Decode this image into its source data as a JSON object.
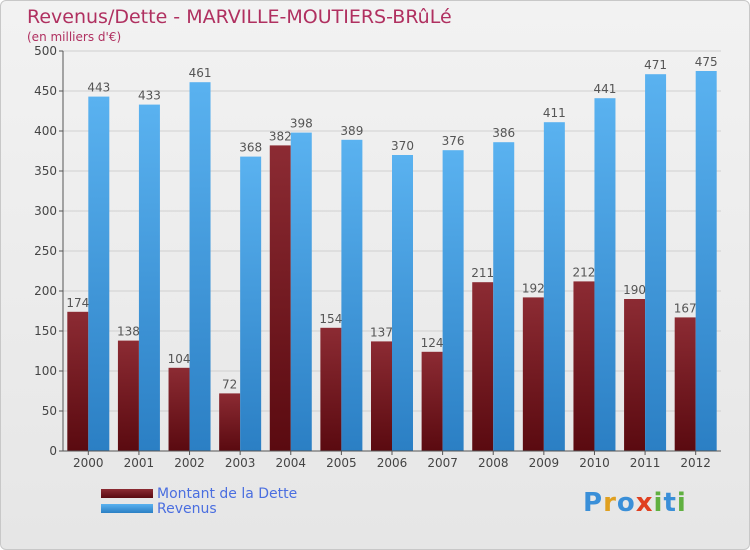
{
  "title": "Revenus/Dette - MARVILLE-MOUTIERS-BRûLé",
  "subtitle": "(en milliers d'€)",
  "logo": "Proxiti",
  "colors": {
    "debt": "#7a1c22",
    "revenue": "#4aa3e6",
    "title": "#b03060",
    "legend_text": "#4a6ee0"
  },
  "chart_data": {
    "type": "bar",
    "categories": [
      "2000",
      "2001",
      "2002",
      "2003",
      "2004",
      "2005",
      "2006",
      "2007",
      "2008",
      "2009",
      "2010",
      "2011",
      "2012"
    ],
    "series": [
      {
        "name": "Montant de la Dette",
        "values": [
          174,
          138,
          104,
          72,
          382,
          154,
          137,
          124,
          211,
          192,
          212,
          190,
          167
        ]
      },
      {
        "name": "Revenus",
        "values": [
          443,
          433,
          461,
          368,
          398,
          389,
          370,
          376,
          386,
          411,
          441,
          471,
          475
        ]
      }
    ],
    "ylim": [
      0,
      500
    ],
    "yticks": [
      0,
      50,
      100,
      150,
      200,
      250,
      300,
      350,
      400,
      450,
      500
    ],
    "grid": true,
    "legend": "bottom-left"
  }
}
